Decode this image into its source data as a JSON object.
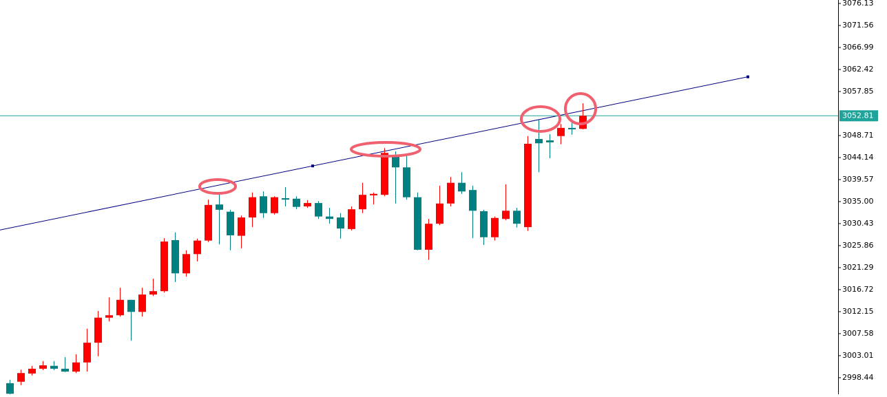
{
  "chart_data": {
    "type": "candlestick",
    "colors": {
      "up": "#ff0000",
      "down": "#008080",
      "current": "#1fa39a",
      "trendline": "#000080",
      "axis": "#000000"
    },
    "candles": {
      "open": [
        2997.3,
        2997.6,
        2999.3,
        3000.3,
        3000.9,
        3000.3,
        2999.7,
        3001.6,
        3005.7,
        3010.9,
        3011.4,
        3014.6,
        3012.1,
        3015.7,
        3016.4,
        3027.0,
        3020.1,
        3024.1,
        3026.9,
        3034.4,
        3032.9,
        3027.9,
        3031.7,
        3036.1,
        3032.6,
        3035.7,
        3035.6,
        3034.0,
        3034.7,
        3031.9,
        3031.7,
        3029.3,
        3033.4,
        3036.3,
        3036.4,
        3044.3,
        3042.1,
        3035.9,
        3025.0,
        3030.4,
        3034.6,
        3038.9,
        3037.4,
        3033.0,
        3027.6,
        3031.4,
        3033.1,
        3029.7,
        3048.0,
        3047.7,
        3048.6,
        3050.3,
        3050.1
      ],
      "high": [
        2998.0,
        3000.1,
        3000.9,
        3001.9,
        3001.9,
        3002.7,
        3003.3,
        3008.6,
        3012.3,
        3015.1,
        3017.1,
        3014.6,
        3017.1,
        3019.0,
        3027.4,
        3028.6,
        3024.9,
        3027.3,
        3035.4,
        3036.9,
        3033.3,
        3032.1,
        3036.9,
        3037.1,
        3036.1,
        3038.0,
        3036.1,
        3035.3,
        3035.1,
        3033.7,
        3032.6,
        3034.0,
        3038.9,
        3036.9,
        3046.1,
        3045.4,
        3044.7,
        3036.9,
        3031.4,
        3038.3,
        3040.1,
        3041.1,
        3038.3,
        3033.3,
        3031.9,
        3038.6,
        3033.7,
        3048.6,
        3051.9,
        3049.0,
        3051.1,
        3051.4,
        3055.4
      ],
      "low": [
        2995.0,
        2996.9,
        2998.9,
        3000.0,
        3000.0,
        2999.6,
        2999.4,
        2999.7,
        3002.9,
        3010.1,
        3011.1,
        3006.1,
        3011.1,
        3015.4,
        3016.1,
        3018.3,
        3019.4,
        3022.6,
        3026.6,
        3026.1,
        3024.9,
        3025.3,
        3029.7,
        3031.6,
        3032.3,
        3034.0,
        3033.4,
        3033.7,
        3031.4,
        3030.4,
        3027.3,
        3029.0,
        3032.6,
        3034.4,
        3036.1,
        3034.6,
        3035.4,
        3024.9,
        3022.9,
        3030.1,
        3034.0,
        3036.6,
        3027.4,
        3026.0,
        3026.9,
        3031.1,
        3029.6,
        3028.9,
        3041.1,
        3044.0,
        3046.9,
        3048.9,
        3050.0
      ],
      "close": [
        2995.1,
        2999.4,
        3000.3,
        3001.0,
        3000.3,
        2999.7,
        3001.6,
        3005.7,
        3010.9,
        3011.4,
        3014.6,
        3012.1,
        3015.7,
        3016.4,
        3026.7,
        3020.1,
        3024.1,
        3026.9,
        3034.3,
        3033.3,
        3028.0,
        3031.7,
        3035.9,
        3032.6,
        3035.9,
        3035.4,
        3033.9,
        3034.7,
        3031.9,
        3031.4,
        3029.4,
        3033.4,
        3036.4,
        3036.6,
        3045.1,
        3042.1,
        3035.9,
        3025.0,
        3030.4,
        3034.6,
        3038.9,
        3037.1,
        3033.1,
        3027.6,
        3031.6,
        3033.1,
        3030.4,
        3047.0,
        3047.1,
        3047.3,
        3050.3,
        3050.0,
        3052.81
      ]
    },
    "ylim": [
      2995.0,
      3076.85
    ],
    "yticks": [
      2998.44,
      3003.01,
      3007.58,
      3012.15,
      3016.72,
      3021.29,
      3025.86,
      3030.43,
      {
        "value": 3035,
        "label": "3035.00"
      },
      3039.57,
      3044.14,
      3048.71,
      3057.85,
      3062.42,
      3066.99,
      3071.56,
      3076.13
    ],
    "current_price": 3052.81,
    "trendline": [
      {
        "index": 27.5,
        "price": 3042.4
      },
      {
        "index": 67,
        "price": 3060.9
      }
    ]
  }
}
